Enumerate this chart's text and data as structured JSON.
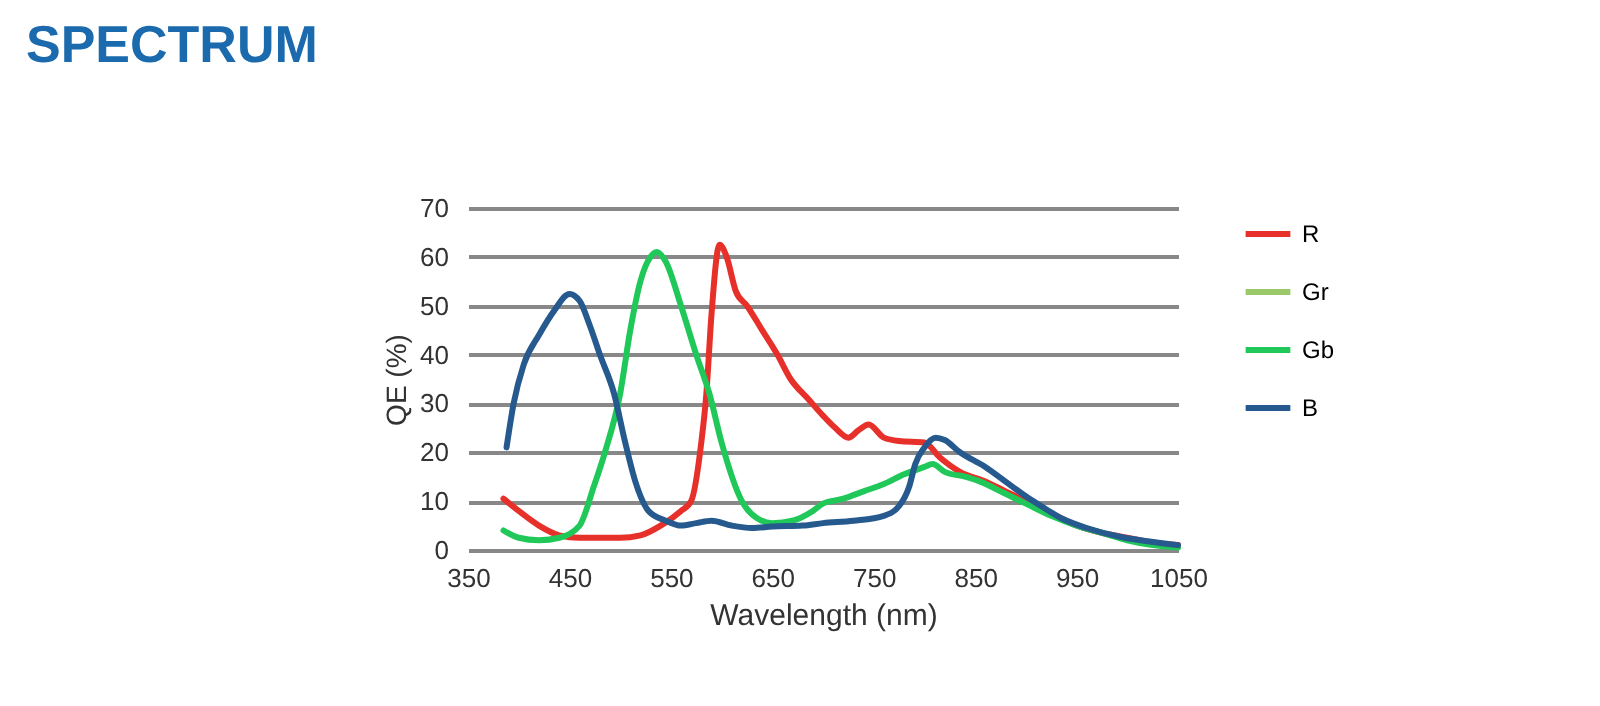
{
  "chart_data": {
    "type": "line",
    "title": "SPECTRUM",
    "xlabel": "Wavelength (nm)",
    "ylabel": "QE (%)",
    "xlim": [
      350,
      1050
    ],
    "xticks": [
      350,
      450,
      550,
      650,
      750,
      850,
      950,
      1050
    ],
    "ylim": [
      0,
      70
    ],
    "yticks": [
      0,
      10,
      20,
      30,
      40,
      50,
      60,
      70
    ],
    "grid": "y",
    "legend": "right",
    "marker": "none",
    "line_style": "solid",
    "series": [
      {
        "name": "R",
        "color": "#e8302a",
        "x": [
          385,
          400,
          420,
          440,
          460,
          480,
          500,
          520,
          540,
          560,
          570,
          580,
          585,
          590,
          598,
          605,
          614,
          625,
          640,
          655,
          668,
          685,
          700,
          712,
          725,
          735,
          745,
          760,
          775,
          800,
          815,
          835,
          860,
          880,
          900,
          925,
          950,
          975,
          1000,
          1025,
          1050
        ],
        "values": [
          10.5,
          8,
          5,
          3,
          2.5,
          2.5,
          2.5,
          3,
          5,
          8,
          10,
          22,
          32,
          48,
          62.5,
          60,
          53,
          50,
          45,
          40,
          35,
          31,
          27.5,
          25,
          23,
          24.5,
          25.7,
          23,
          22.3,
          22,
          19,
          16,
          14,
          12,
          10,
          7.5,
          5,
          3.5,
          2.5,
          1.5,
          1
        ]
      },
      {
        "name": "Gr",
        "color": "#9bc96a"
      },
      {
        "name": "Gb",
        "color": "#1fc858",
        "x": [
          385,
          400,
          420,
          440,
          460,
          474,
          485,
          500,
          510,
          520,
          530,
          536,
          545,
          560,
          575,
          588,
          600,
          620,
          635,
          650,
          670,
          690,
          700,
          720,
          740,
          760,
          780,
          800,
          808,
          820,
          840,
          855,
          880,
          900,
          925,
          950,
          975,
          1000,
          1025,
          1050
        ],
        "values": [
          4,
          2.5,
          2,
          2.5,
          5,
          13,
          20,
          32,
          45,
          55,
          60,
          61,
          59,
          50,
          40,
          32,
          22,
          10,
          6.5,
          5.5,
          6,
          8,
          9.5,
          10.5,
          12,
          13.5,
          15.5,
          17,
          17.6,
          16,
          15,
          14,
          11.5,
          9.5,
          7,
          5,
          3.5,
          2,
          1,
          0.5
        ]
      },
      {
        "name": "B",
        "color": "#265a8e",
        "x": [
          388,
          395,
          405,
          420,
          435,
          450,
          460,
          470,
          480,
          494,
          505,
          515,
          528,
          545,
          560,
          575,
          590,
          610,
          630,
          650,
          680,
          700,
          730,
          760,
          775,
          785,
          791,
          800,
          811,
          820,
          835,
          860,
          880,
          900,
          915,
          935,
          960,
          995,
          1020,
          1050
        ],
        "values": [
          21,
          30,
          38,
          44,
          49,
          52.4,
          51,
          46,
          40,
          32,
          22,
          14,
          8,
          6,
          5,
          5.5,
          6,
          5,
          4.5,
          4.8,
          5,
          5.5,
          6,
          7,
          9,
          13,
          17.6,
          21,
          23,
          22.5,
          20,
          17,
          14,
          11,
          9,
          6.5,
          4.5,
          2.6,
          1.8,
          1
        ]
      }
    ]
  }
}
